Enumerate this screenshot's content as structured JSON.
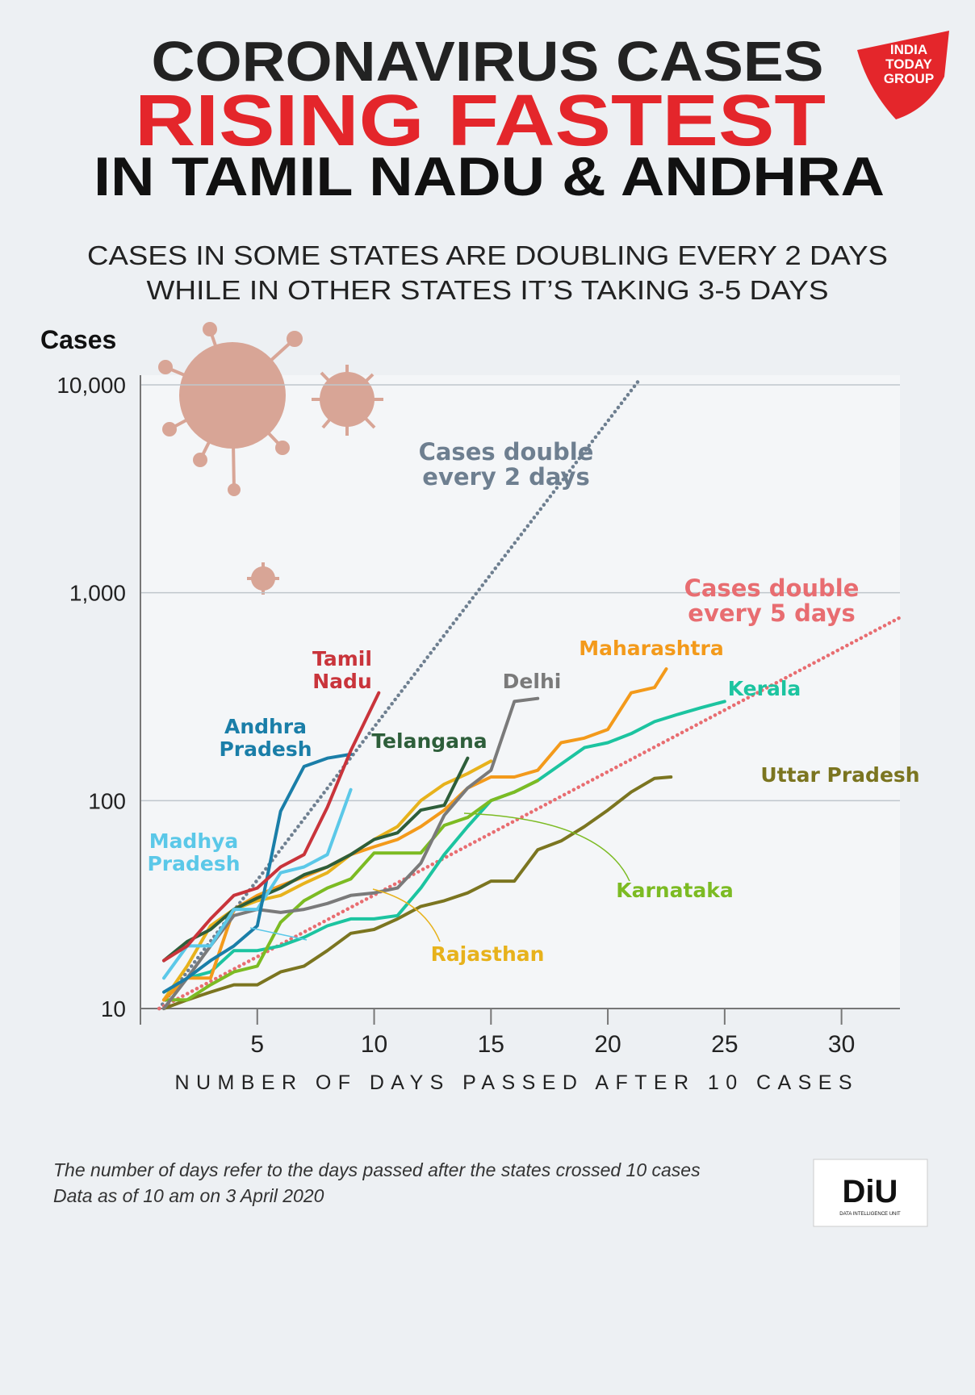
{
  "chart_data": {
    "type": "line",
    "title_lines": [
      "CORONAVIRUS CASES",
      "RISING FASTEST",
      "IN TAMIL NADU & ANDHRA"
    ],
    "subtitle_lines": [
      "CASES IN SOME STATES ARE DOUBLING EVERY 2 DAYS",
      "WHILE IN OTHER STATES IT’S TAKING 3-5 DAYS"
    ],
    "y_label": "Cases",
    "x_label": "NUMBER OF DAYS PASSED AFTER 10 CASES",
    "log_y": true,
    "grid": true,
    "xlim": [
      0,
      32.5
    ],
    "ylim": [
      10,
      10000
    ],
    "xticks": [
      5,
      10,
      15,
      20,
      25,
      30
    ],
    "yticks": [
      10,
      100,
      {
        "value": 1000,
        "label": "1,000"
      },
      {
        "value": 10000,
        "label": "10,000"
      }
    ],
    "series": [
      {
        "name": "Cases double every 2 days",
        "color": "#6e7f90",
        "style": "dotted",
        "x": [
          0.8,
          21.3
        ],
        "values": [
          10,
          10400
        ]
      },
      {
        "name": "Cases double every 5 days",
        "color": "#e86d71",
        "style": "dotted",
        "x": [
          0.8,
          32.5
        ],
        "values": [
          10,
          760
        ]
      },
      {
        "name": "Uttar Pradesh",
        "color": "#7b7520",
        "style": "solid",
        "x": [
          1,
          2,
          3,
          4,
          5,
          6,
          7,
          8,
          9,
          10,
          11,
          12,
          13,
          14,
          15,
          16,
          17,
          18,
          19,
          20,
          21,
          22,
          22.7
        ],
        "values": [
          10,
          11,
          12,
          13,
          13,
          15,
          16,
          19,
          23,
          24,
          27,
          31,
          33,
          36,
          41,
          41,
          58,
          64,
          75,
          90,
          110,
          128,
          130
        ]
      },
      {
        "name": "Kerala",
        "color": "#1cc4a0",
        "style": "solid",
        "x": [
          1,
          2,
          3,
          4,
          5,
          6,
          7,
          8,
          9,
          10,
          11,
          12,
          13,
          14,
          15,
          16,
          17,
          18,
          19,
          20,
          21,
          22,
          23,
          24,
          25
        ],
        "values": [
          11,
          14,
          15,
          19,
          19,
          20,
          22,
          25,
          27,
          27,
          28,
          38,
          55,
          75,
          100,
          110,
          125,
          150,
          180,
          190,
          210,
          240,
          260,
          280,
          300
        ]
      },
      {
        "name": "Karnataka",
        "color": "#7cbb23",
        "style": "solid",
        "x": [
          1,
          2,
          3,
          4,
          5,
          6,
          7,
          8,
          9,
          10,
          11,
          12,
          13,
          14,
          15,
          16,
          17
        ],
        "values": [
          11,
          11,
          13,
          15,
          16,
          26,
          33,
          38,
          42,
          56,
          56,
          56,
          76,
          83,
          100,
          110,
          125
        ]
      },
      {
        "name": "Rajasthan",
        "color": "#e7b21c",
        "style": "solid",
        "x": [
          1,
          2,
          3,
          4,
          5,
          6,
          7,
          8,
          9,
          10,
          11,
          12,
          13,
          14,
          15
        ],
        "values": [
          11,
          16,
          25,
          30,
          33,
          35,
          40,
          45,
          55,
          65,
          75,
          100,
          120,
          135,
          155
        ]
      },
      {
        "name": "Maharashtra",
        "color": "#f39a1b",
        "style": "solid",
        "x": [
          1,
          2,
          3,
          4,
          5,
          6,
          7,
          8,
          9,
          10,
          11,
          12,
          13,
          14,
          15,
          16,
          17,
          18,
          19,
          20,
          21,
          22,
          22.5
        ],
        "values": [
          11,
          14,
          14,
          30,
          35,
          39,
          43,
          48,
          55,
          60,
          65,
          75,
          90,
          115,
          130,
          130,
          140,
          190,
          200,
          220,
          330,
          350,
          430
        ]
      },
      {
        "name": "Delhi",
        "color": "#7a7a7a",
        "style": "solid",
        "x": [
          1,
          2,
          3,
          4,
          5,
          6,
          7,
          8,
          9,
          10,
          11,
          12,
          13,
          14,
          15,
          16,
          17
        ],
        "values": [
          10,
          14,
          20,
          28,
          30,
          29,
          30,
          32,
          35,
          36,
          38,
          50,
          85,
          115,
          140,
          300,
          310
        ]
      },
      {
        "name": "Telangana",
        "color": "#2d5e3a",
        "style": "solid",
        "x": [
          1,
          2,
          3,
          4,
          5,
          6,
          7,
          8,
          9,
          10,
          11,
          12,
          13,
          14
        ],
        "values": [
          17,
          21,
          24,
          30,
          34,
          38,
          44,
          48,
          55,
          65,
          70,
          90,
          95,
          160
        ]
      },
      {
        "name": "Madhya Pradesh",
        "color": "#5bc8e8",
        "style": "solid",
        "x": [
          1,
          2,
          3,
          4,
          5,
          6,
          7,
          8,
          9
        ],
        "values": [
          14,
          20,
          20,
          30,
          30,
          45,
          48,
          55,
          113
        ]
      },
      {
        "name": "Andhra Pradesh",
        "color": "#1a7ea8",
        "style": "solid",
        "x": [
          1,
          2,
          3,
          4,
          5,
          6,
          7,
          8,
          9
        ],
        "values": [
          12,
          14,
          17,
          20,
          25,
          89,
          146,
          160,
          167
        ]
      },
      {
        "name": "Tamil Nadu",
        "color": "#c9343b",
        "style": "solid",
        "x": [
          1,
          2,
          3,
          4,
          5,
          6,
          7,
          8,
          9,
          10.2
        ],
        "values": [
          17,
          20,
          27,
          35,
          38,
          48,
          55,
          93,
          174,
          330
        ]
      }
    ],
    "notes": [
      "The number of days refer to the days passed after the states crossed 10 cases",
      "Data as of 10 am on 3 April 2020"
    ]
  },
  "branding": {
    "india_today": [
      "INDIA",
      "TODAY",
      "GROUP"
    ],
    "diu": "DiU",
    "diu_caption": "DATA INTELLIGENCE UNIT"
  }
}
